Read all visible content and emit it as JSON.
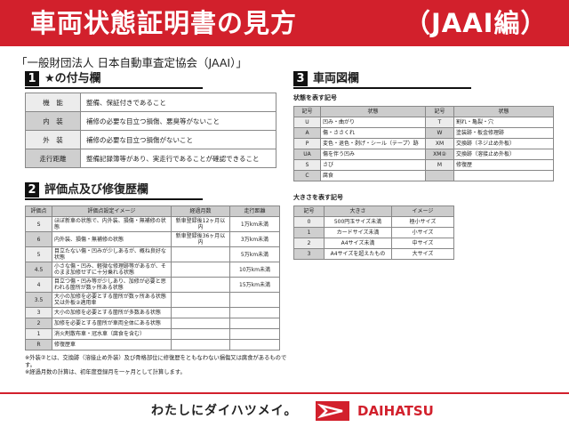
{
  "header": {
    "title": "車両状態証明書の見方",
    "subtitle": "（JAAI編）"
  },
  "organization": "「一般財団法人 日本自動車査定協会（JAAI）」",
  "section1": {
    "num": "1",
    "title": "★の付与欄",
    "rows": [
      {
        "k": "機　能",
        "v": "整備、保証付きであること"
      },
      {
        "k": "内　装",
        "v": "補修の必要な目立つ損傷、悪臭等がないこと"
      },
      {
        "k": "外　装",
        "v": "補修の必要な目立つ損傷がないこと"
      },
      {
        "k": "走行距離",
        "v": "整備記録簿等があり、実走行であることが確認できること"
      }
    ]
  },
  "section2": {
    "num": "2",
    "title": "評価点及び修復歴欄",
    "headers": [
      "評価点",
      "評価点設定イメージ",
      "経過月数",
      "走行距離"
    ],
    "rows": [
      [
        "S",
        "ほぼ新車の状態で、内外装、損傷・無補修の状態",
        "新車登録後12ヶ月以内",
        "1万km未満"
      ],
      [
        "6",
        "内外装、損傷・無補修の状態",
        "新車登録後36ヶ月以内",
        "3万km未満"
      ],
      [
        "5",
        "目立たない傷・凹みが少しあるが、概ね良好な状態",
        "",
        "5万km未満"
      ],
      [
        "4.5",
        "小さな傷・凹み、軽微な修理跡等があるが、そのまま加修せずに十分乗れる状態",
        "",
        "10万km未満"
      ],
      [
        "4",
        "目立つ傷・凹み等が少しあり、加修が必要と思われる箇所が数ヶ所ある状態",
        "",
        "15万km未満"
      ],
      [
        "3.5",
        "大小の加修を必要とする箇所が数ヶ所ある状態又は外板②適用車",
        "",
        ""
      ],
      [
        "3",
        "大小の加修を必要とする箇所が多数ある状態",
        "",
        ""
      ],
      [
        "2",
        "加修を必要とする箇所が車両全体にある状態",
        "",
        ""
      ],
      [
        "1",
        "消火剤散布車・冠水車（腐食を含む）",
        "",
        ""
      ],
      [
        "R",
        "修復歴車",
        "",
        ""
      ]
    ]
  },
  "notes": [
    "※外装②とは、交換跡（溶接止め外装）及び骨格部位に修復歴をともなわない損傷又は腐食があるものです。",
    "※経過月数の計算は、初年度登録月を一ヶ月として計算します。"
  ],
  "section3": {
    "num": "3",
    "title": "車両図欄",
    "state_title": "状態を表す記号",
    "state_headers": [
      "記号",
      "状態",
      "記号",
      "状態"
    ],
    "state_rows": [
      [
        "U",
        "凹み・曲がり",
        "T",
        "割れ・亀裂・穴"
      ],
      [
        "A",
        "傷・ささくれ",
        "W",
        "塗装跡・板金修理跡"
      ],
      [
        "P",
        "変色・退色・剥げ・シール（テープ）跡",
        "XM",
        "交換跡（ネジ止め外板）"
      ],
      [
        "UA",
        "傷を伴う凹み",
        "XM②",
        "交換跡（溶接止め外板）"
      ],
      [
        "S",
        "さび",
        "M",
        "修復歴"
      ],
      [
        "C",
        "腐食",
        "",
        ""
      ]
    ],
    "size_title": "大きさを表す記号",
    "size_headers": [
      "記号",
      "大きさ",
      "イメージ"
    ],
    "size_rows": [
      [
        "0",
        "500円玉サイズ未満",
        "極小サイズ"
      ],
      [
        "1",
        "カードサイズ未満",
        "小サイズ"
      ],
      [
        "2",
        "A4サイズ未満",
        "中サイズ"
      ],
      [
        "3",
        "A4サイズを超えたもの",
        "大サイズ"
      ]
    ]
  },
  "footer": {
    "slogan": "わたしにダイハツメイ。",
    "brand": "DAIHATSU"
  },
  "colors": {
    "brand_red": "#d2202c"
  }
}
